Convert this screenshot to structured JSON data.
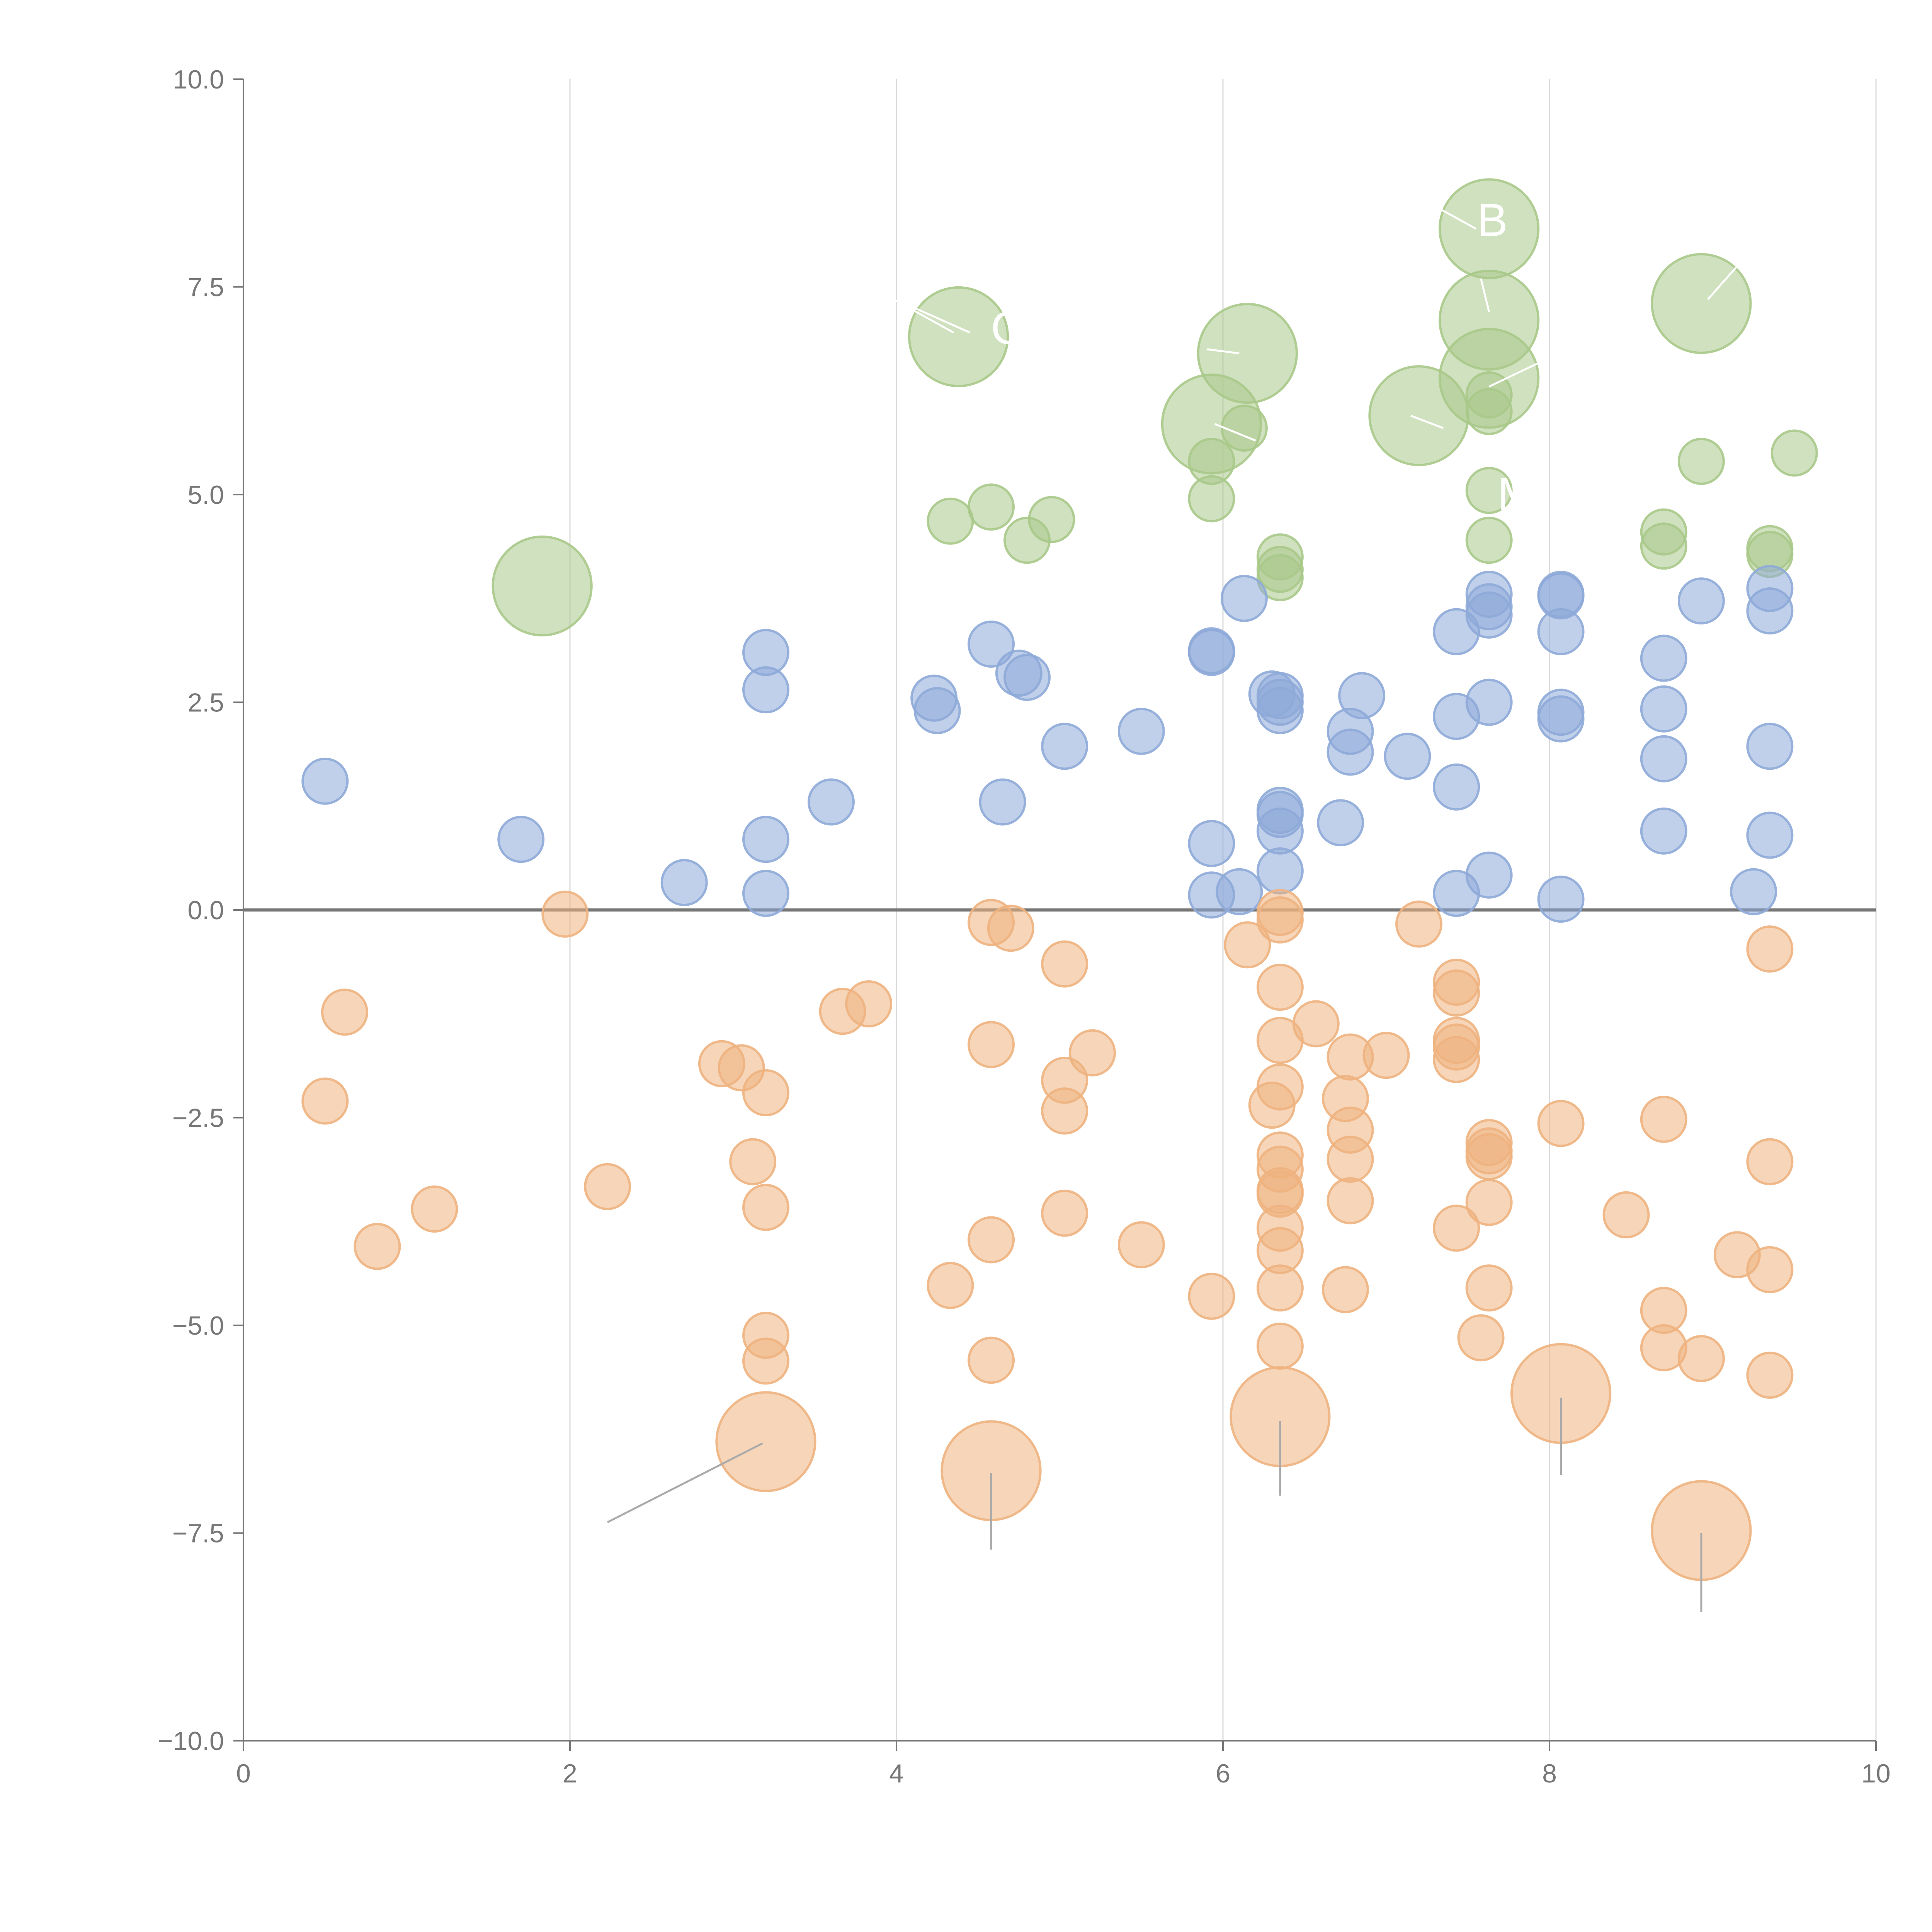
{
  "chart_data": {
    "type": "scatter",
    "title": "",
    "xlabel": "",
    "ylabel": "",
    "xlim": [
      0,
      10
    ],
    "ylim": [
      -10,
      10
    ],
    "grid": "vertical",
    "x_ticks": [
      "0",
      "2",
      "4",
      "6",
      "8",
      "10"
    ],
    "y_ticks": [
      "−10.0",
      "−7.5",
      "−5.0",
      "−2.5",
      "0.0",
      "2.5",
      "5.0",
      "7.5",
      "10.0"
    ],
    "x_tick_values": [
      0,
      2,
      4,
      6,
      8,
      10
    ],
    "y_tick_values": [
      -10,
      -7.5,
      -5,
      -2.5,
      0,
      2.5,
      5,
      7.5,
      10
    ],
    "annotations": [
      {
        "text": "B",
        "x": 7.65,
        "y": 8.3
      },
      {
        "text": "C",
        "x": 4.68,
        "y": 7.0
      },
      {
        "text": "M",
        "x": 7.8,
        "y": 5.0
      }
    ],
    "series": [
      {
        "name": "green",
        "color": "#a9c98a",
        "points": [
          [
            1.83,
            3.9,
            2.2
          ],
          [
            4.38,
            6.9,
            2.2
          ],
          [
            6.15,
            6.7,
            2.2
          ],
          [
            5.93,
            5.85,
            2.2
          ],
          [
            7.2,
            5.95,
            2.2
          ],
          [
            7.63,
            8.2,
            2.2
          ],
          [
            7.63,
            7.1,
            2.2
          ],
          [
            7.63,
            6.4,
            2.2
          ],
          [
            8.93,
            7.3,
            2.2
          ],
          [
            6.13,
            5.8,
            1
          ],
          [
            7.63,
            6.2,
            1
          ],
          [
            7.63,
            6.0,
            1
          ],
          [
            5.93,
            5.4,
            1
          ],
          [
            5.93,
            4.95,
            1
          ],
          [
            4.33,
            4.68,
            1
          ],
          [
            4.58,
            4.85,
            1
          ],
          [
            4.8,
            4.45,
            1
          ],
          [
            4.95,
            4.7,
            1
          ],
          [
            6.35,
            4.25,
            1
          ],
          [
            6.35,
            4.1,
            1
          ],
          [
            6.35,
            4.0,
            1
          ],
          [
            7.63,
            5.05,
            1
          ],
          [
            7.63,
            4.45,
            1
          ],
          [
            8.7,
            4.55,
            1
          ],
          [
            8.7,
            4.38,
            1
          ],
          [
            8.93,
            5.4,
            1
          ],
          [
            9.35,
            4.35,
            1
          ],
          [
            9.35,
            4.28,
            1
          ],
          [
            9.5,
            5.5,
            1
          ]
        ]
      },
      {
        "name": "blue",
        "color": "#8eaad8",
        "points": [
          [
            0.5,
            1.55,
            1
          ],
          [
            1.7,
            0.85,
            1
          ],
          [
            2.7,
            0.33,
            1
          ],
          [
            3.2,
            3.1,
            1
          ],
          [
            3.2,
            2.65,
            1
          ],
          [
            3.2,
            0.85,
            1
          ],
          [
            3.2,
            0.2,
            1
          ],
          [
            3.6,
            1.3,
            1
          ],
          [
            4.23,
            2.55,
            1
          ],
          [
            4.25,
            2.4,
            1
          ],
          [
            4.58,
            3.2,
            1
          ],
          [
            4.65,
            1.3,
            1
          ],
          [
            4.75,
            2.85,
            1
          ],
          [
            4.8,
            2.8,
            1
          ],
          [
            5.03,
            1.97,
            1
          ],
          [
            5.5,
            2.15,
            1
          ],
          [
            5.93,
            3.1,
            1
          ],
          [
            5.93,
            3.12,
            1
          ],
          [
            6.13,
            3.75,
            1
          ],
          [
            5.93,
            0.8,
            1
          ],
          [
            5.93,
            0.18,
            1
          ],
          [
            6.1,
            0.22,
            1
          ],
          [
            6.3,
            2.6,
            1
          ],
          [
            6.35,
            2.58,
            1
          ],
          [
            6.35,
            2.5,
            1
          ],
          [
            6.35,
            2.4,
            1
          ],
          [
            6.35,
            1.2,
            1
          ],
          [
            6.35,
            1.15,
            1
          ],
          [
            6.35,
            0.95,
            1
          ],
          [
            6.35,
            0.47,
            1
          ],
          [
            6.72,
            1.05,
            1
          ],
          [
            6.78,
            2.15,
            1
          ],
          [
            6.78,
            1.9,
            1
          ],
          [
            6.85,
            2.58,
            1
          ],
          [
            7.13,
            1.85,
            1
          ],
          [
            7.43,
            3.35,
            1
          ],
          [
            7.43,
            2.33,
            1
          ],
          [
            7.43,
            1.48,
            1
          ],
          [
            7.43,
            0.2,
            1
          ],
          [
            7.63,
            3.8,
            1
          ],
          [
            7.63,
            3.65,
            1
          ],
          [
            7.63,
            3.55,
            1
          ],
          [
            7.63,
            2.5,
            1
          ],
          [
            7.63,
            0.42,
            1
          ],
          [
            8.07,
            3.8,
            1
          ],
          [
            8.07,
            3.78,
            1
          ],
          [
            8.07,
            3.35,
            1
          ],
          [
            8.07,
            2.38,
            1
          ],
          [
            8.07,
            2.3,
            1
          ],
          [
            8.07,
            0.13,
            1
          ],
          [
            8.7,
            3.03,
            1
          ],
          [
            8.7,
            2.42,
            1
          ],
          [
            8.7,
            1.82,
            1
          ],
          [
            8.7,
            0.95,
            1
          ],
          [
            8.93,
            3.72,
            1
          ],
          [
            9.35,
            3.87,
            1
          ],
          [
            9.35,
            3.6,
            1
          ],
          [
            9.35,
            1.97,
            1
          ],
          [
            9.35,
            0.9,
            1
          ],
          [
            9.25,
            0.22,
            1
          ]
        ]
      },
      {
        "name": "orange",
        "color": "#eeb27f",
        "points": [
          [
            1.97,
            -0.05,
            1
          ],
          [
            0.62,
            -1.23,
            1
          ],
          [
            0.5,
            -2.3,
            1
          ],
          [
            0.82,
            -4.05,
            1
          ],
          [
            1.17,
            -3.6,
            1
          ],
          [
            2.23,
            -3.33,
            1
          ],
          [
            2.93,
            -1.85,
            1
          ],
          [
            3.05,
            -1.9,
            1
          ],
          [
            3.2,
            -2.2,
            1
          ],
          [
            3.12,
            -3.03,
            1
          ],
          [
            3.2,
            -3.58,
            1
          ],
          [
            3.2,
            -5.12,
            1
          ],
          [
            3.2,
            -5.43,
            1
          ],
          [
            3.2,
            -6.4,
            2.2
          ],
          [
            3.67,
            -1.22,
            1
          ],
          [
            3.83,
            -1.13,
            1
          ],
          [
            4.33,
            -4.52,
            1
          ],
          [
            4.58,
            -0.15,
            1
          ],
          [
            4.7,
            -0.22,
            1
          ],
          [
            4.58,
            -1.62,
            1
          ],
          [
            4.58,
            -3.97,
            1
          ],
          [
            4.58,
            -5.42,
            1
          ],
          [
            4.58,
            -6.75,
            2.2
          ],
          [
            5.03,
            -0.65,
            1
          ],
          [
            5.03,
            -2.05,
            1
          ],
          [
            5.03,
            -2.42,
            1
          ],
          [
            5.03,
            -3.65,
            1
          ],
          [
            5.2,
            -1.72,
            1
          ],
          [
            5.5,
            -4.03,
            1
          ],
          [
            5.93,
            -4.65,
            1
          ],
          [
            6.15,
            -0.42,
            1
          ],
          [
            6.35,
            -0.03,
            1
          ],
          [
            6.35,
            -0.12,
            1
          ],
          [
            6.35,
            -0.93,
            1
          ],
          [
            6.35,
            -1.57,
            1
          ],
          [
            6.35,
            -2.13,
            1
          ],
          [
            6.3,
            -2.35,
            1
          ],
          [
            6.35,
            -2.95,
            1
          ],
          [
            6.35,
            -3.12,
            1
          ],
          [
            6.35,
            -3.38,
            1
          ],
          [
            6.35,
            -3.42,
            1
          ],
          [
            6.35,
            -3.83,
            1
          ],
          [
            6.35,
            -4.1,
            1
          ],
          [
            6.35,
            -4.55,
            1
          ],
          [
            6.35,
            -5.25,
            1
          ],
          [
            6.35,
            -6.1,
            2.2
          ],
          [
            6.57,
            -1.37,
            1
          ],
          [
            6.75,
            -2.27,
            1
          ],
          [
            6.78,
            -1.77,
            1
          ],
          [
            6.78,
            -2.65,
            1
          ],
          [
            6.78,
            -3.0,
            1
          ],
          [
            6.78,
            -3.5,
            1
          ],
          [
            6.75,
            -4.57,
            1
          ],
          [
            7.0,
            -1.75,
            1
          ],
          [
            7.2,
            -0.17,
            1
          ],
          [
            7.43,
            -0.87,
            1
          ],
          [
            7.43,
            -1.0,
            1
          ],
          [
            7.43,
            -1.57,
            1
          ],
          [
            7.43,
            -1.65,
            1
          ],
          [
            7.43,
            -1.8,
            1
          ],
          [
            7.43,
            -3.83,
            1
          ],
          [
            7.58,
            -5.15,
            1
          ],
          [
            7.63,
            -2.8,
            1
          ],
          [
            7.63,
            -2.9,
            1
          ],
          [
            7.63,
            -2.97,
            1
          ],
          [
            7.63,
            -3.52,
            1
          ],
          [
            7.63,
            -4.55,
            1
          ],
          [
            8.07,
            -2.57,
            1
          ],
          [
            8.07,
            -5.82,
            2.2
          ],
          [
            8.47,
            -3.67,
            1
          ],
          [
            8.7,
            -2.52,
            1
          ],
          [
            8.7,
            -4.82,
            1
          ],
          [
            8.7,
            -5.27,
            1
          ],
          [
            8.93,
            -5.4,
            1
          ],
          [
            8.93,
            -7.47,
            2.2
          ],
          [
            9.15,
            -4.15,
            1
          ],
          [
            9.35,
            -0.47,
            1
          ],
          [
            9.35,
            -3.03,
            1
          ],
          [
            9.35,
            -4.33,
            1
          ],
          [
            9.35,
            -5.6,
            1
          ]
        ]
      }
    ],
    "leader_lines": [
      {
        "color": "white",
        "from": [
          6.67,
          9.15
        ],
        "to": [
          7.55,
          8.2
        ]
      },
      {
        "color": "white",
        "from": [
          3.8,
          7.55
        ],
        "to": [
          4.35,
          6.95
        ]
      },
      {
        "color": "white",
        "from": [
          4.05,
          7.3
        ],
        "to": [
          4.45,
          6.95
        ]
      },
      {
        "color": "white",
        "from": [
          5.9,
          6.75
        ],
        "to": [
          6.1,
          6.7
        ]
      },
      {
        "color": "white",
        "from": [
          5.95,
          5.85
        ],
        "to": [
          6.2,
          5.65
        ]
      },
      {
        "color": "white",
        "from": [
          7.15,
          5.95
        ],
        "to": [
          7.35,
          5.8
        ]
      },
      {
        "color": "white",
        "from": [
          7.58,
          7.6
        ],
        "to": [
          7.63,
          7.2
        ]
      },
      {
        "color": "white",
        "from": [
          7.63,
          6.3
        ],
        "to": [
          7.95,
          6.6
        ]
      },
      {
        "color": "white",
        "from": [
          8.97,
          7.35
        ],
        "to": [
          9.15,
          7.75
        ]
      },
      {
        "color": "gray",
        "from": [
          2.23,
          -7.37
        ],
        "to": [
          3.18,
          -6.42
        ]
      },
      {
        "color": "gray",
        "from": [
          4.58,
          -6.78
        ],
        "to": [
          4.58,
          -7.7
        ]
      },
      {
        "color": "gray",
        "from": [
          6.35,
          -6.15
        ],
        "to": [
          6.35,
          -7.05
        ]
      },
      {
        "color": "gray",
        "from": [
          8.07,
          -5.87
        ],
        "to": [
          8.07,
          -6.8
        ]
      },
      {
        "color": "gray",
        "from": [
          8.93,
          -7.5
        ],
        "to": [
          8.93,
          -8.45
        ]
      }
    ]
  }
}
